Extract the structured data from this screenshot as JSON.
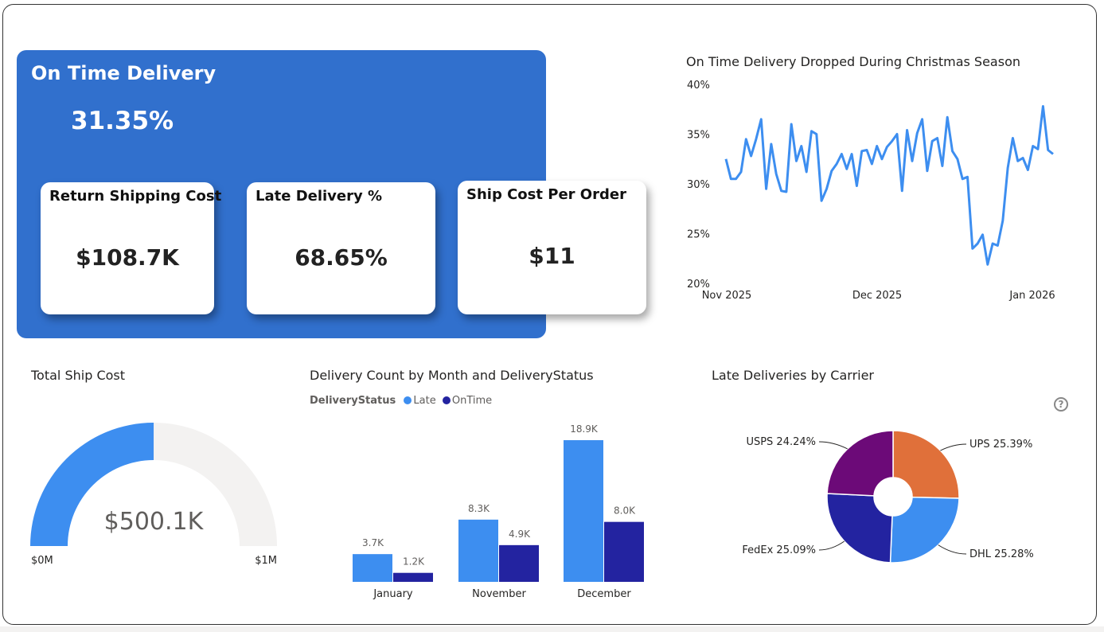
{
  "kpi": {
    "title": "On Time Delivery",
    "value": "31.35%",
    "cards": [
      {
        "title": "Return Shipping Cost",
        "value": "$108.7K"
      },
      {
        "title": "Late Delivery %",
        "value": "68.65%"
      },
      {
        "title": "Ship Cost Per Order",
        "value": "$11"
      }
    ]
  },
  "colors": {
    "panel": "#3170cd",
    "line": "#3d8ef0",
    "late": "#3d8ef0",
    "ontime": "#2323a0",
    "ups": "#e0703a",
    "dhl": "#3d8ef0",
    "fedex": "#2323a0",
    "usps": "#6c0a78",
    "gauge_track": "#f3f2f1"
  },
  "charts": {
    "line_title": "On Time Delivery Dropped During Christmas Season",
    "gauge_title": "Total Ship Cost",
    "bar_title": "Delivery Count by Month and DeliveryStatus",
    "pie_title": "Late Deliveries by Carrier"
  },
  "help_icon": "question-circle-icon",
  "chart_data": [
    {
      "type": "line",
      "title": "On Time Delivery Dropped During Christmas Season",
      "x_start": "2025-11-01",
      "x_end": "2026-01-08",
      "x_ticks": [
        "Nov 2025",
        "Dec 2025",
        "Jan 2026"
      ],
      "y_ticks": [
        "20%",
        "25%",
        "30%",
        "35%",
        "40%"
      ],
      "ylim": [
        20,
        40
      ],
      "grid": false,
      "series": [
        {
          "values": [
            32.5,
            30.5,
            30.5,
            31.2,
            34.5,
            32.8,
            34.5,
            36.5,
            29.5,
            34.0,
            31.0,
            29.3,
            29.2,
            36.0,
            32.3,
            33.8,
            31.2,
            35.3,
            35.0,
            28.3,
            29.5,
            31.3,
            32.0,
            33.0,
            31.5,
            33.0,
            29.8,
            33.3,
            33.4,
            32.0,
            33.8,
            32.5,
            33.7,
            34.3,
            35.0,
            29.3,
            35.4,
            32.3,
            35.1,
            36.5,
            31.3,
            34.3,
            34.6,
            31.8,
            36.7,
            33.3,
            32.5,
            30.5,
            30.7,
            23.5,
            24.0,
            24.9,
            21.9,
            24.0,
            23.8,
            26.3,
            31.6,
            34.6,
            32.3,
            32.6,
            31.4,
            33.8,
            33.5,
            37.8,
            33.4,
            33.0
          ]
        }
      ]
    },
    {
      "type": "gauge",
      "title": "Total Ship Cost",
      "value": 500.1,
      "min": 0,
      "max": 1000,
      "value_label": "$500.1K",
      "min_label": "$0M",
      "max_label": "$1M"
    },
    {
      "type": "bar",
      "title": "Delivery Count by Month and DeliveryStatus",
      "legend_title": "DeliveryStatus",
      "categories": [
        "January",
        "November",
        "December"
      ],
      "series": [
        {
          "name": "Late",
          "values": [
            3.7,
            8.3,
            18.9
          ],
          "labels": [
            "3.7K",
            "8.3K",
            "18.9K"
          ]
        },
        {
          "name": "OnTime",
          "values": [
            1.2,
            4.9,
            8.0
          ],
          "labels": [
            "1.2K",
            "4.9K",
            "8.0K"
          ]
        }
      ]
    },
    {
      "type": "pie",
      "title": "Late Deliveries by Carrier",
      "slices": [
        {
          "label": "UPS 25.39%",
          "value": 25.39
        },
        {
          "label": "DHL 25.28%",
          "value": 25.28
        },
        {
          "label": "FedEx 25.09%",
          "value": 25.09
        },
        {
          "label": "USPS 24.24%",
          "value": 24.24
        }
      ]
    }
  ]
}
